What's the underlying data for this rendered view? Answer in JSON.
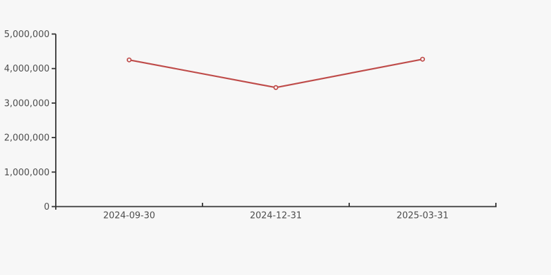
{
  "chart_data": {
    "type": "line",
    "title": "",
    "xlabel": "",
    "ylabel": "",
    "x": [
      "2024-09-30",
      "2024-12-31",
      "2025-03-31"
    ],
    "series": [
      {
        "values": [
          4250000,
          3450000,
          4270000
        ],
        "color": "#bf4c4a",
        "marker": "open-circle"
      }
    ],
    "ylim": [
      0,
      5000000
    ],
    "yticks": [
      0,
      1000000,
      2000000,
      3000000,
      4000000,
      5000000
    ],
    "ytick_labels": [
      "0",
      "1,000,000",
      "2,000,000",
      "3,000,000",
      "4,000,000",
      "5,000,000"
    ],
    "grid": false,
    "legend": false
  },
  "colors": {
    "background": "#f7f7f7",
    "axis": "#333333",
    "tick_label": "#4d4d4d"
  }
}
